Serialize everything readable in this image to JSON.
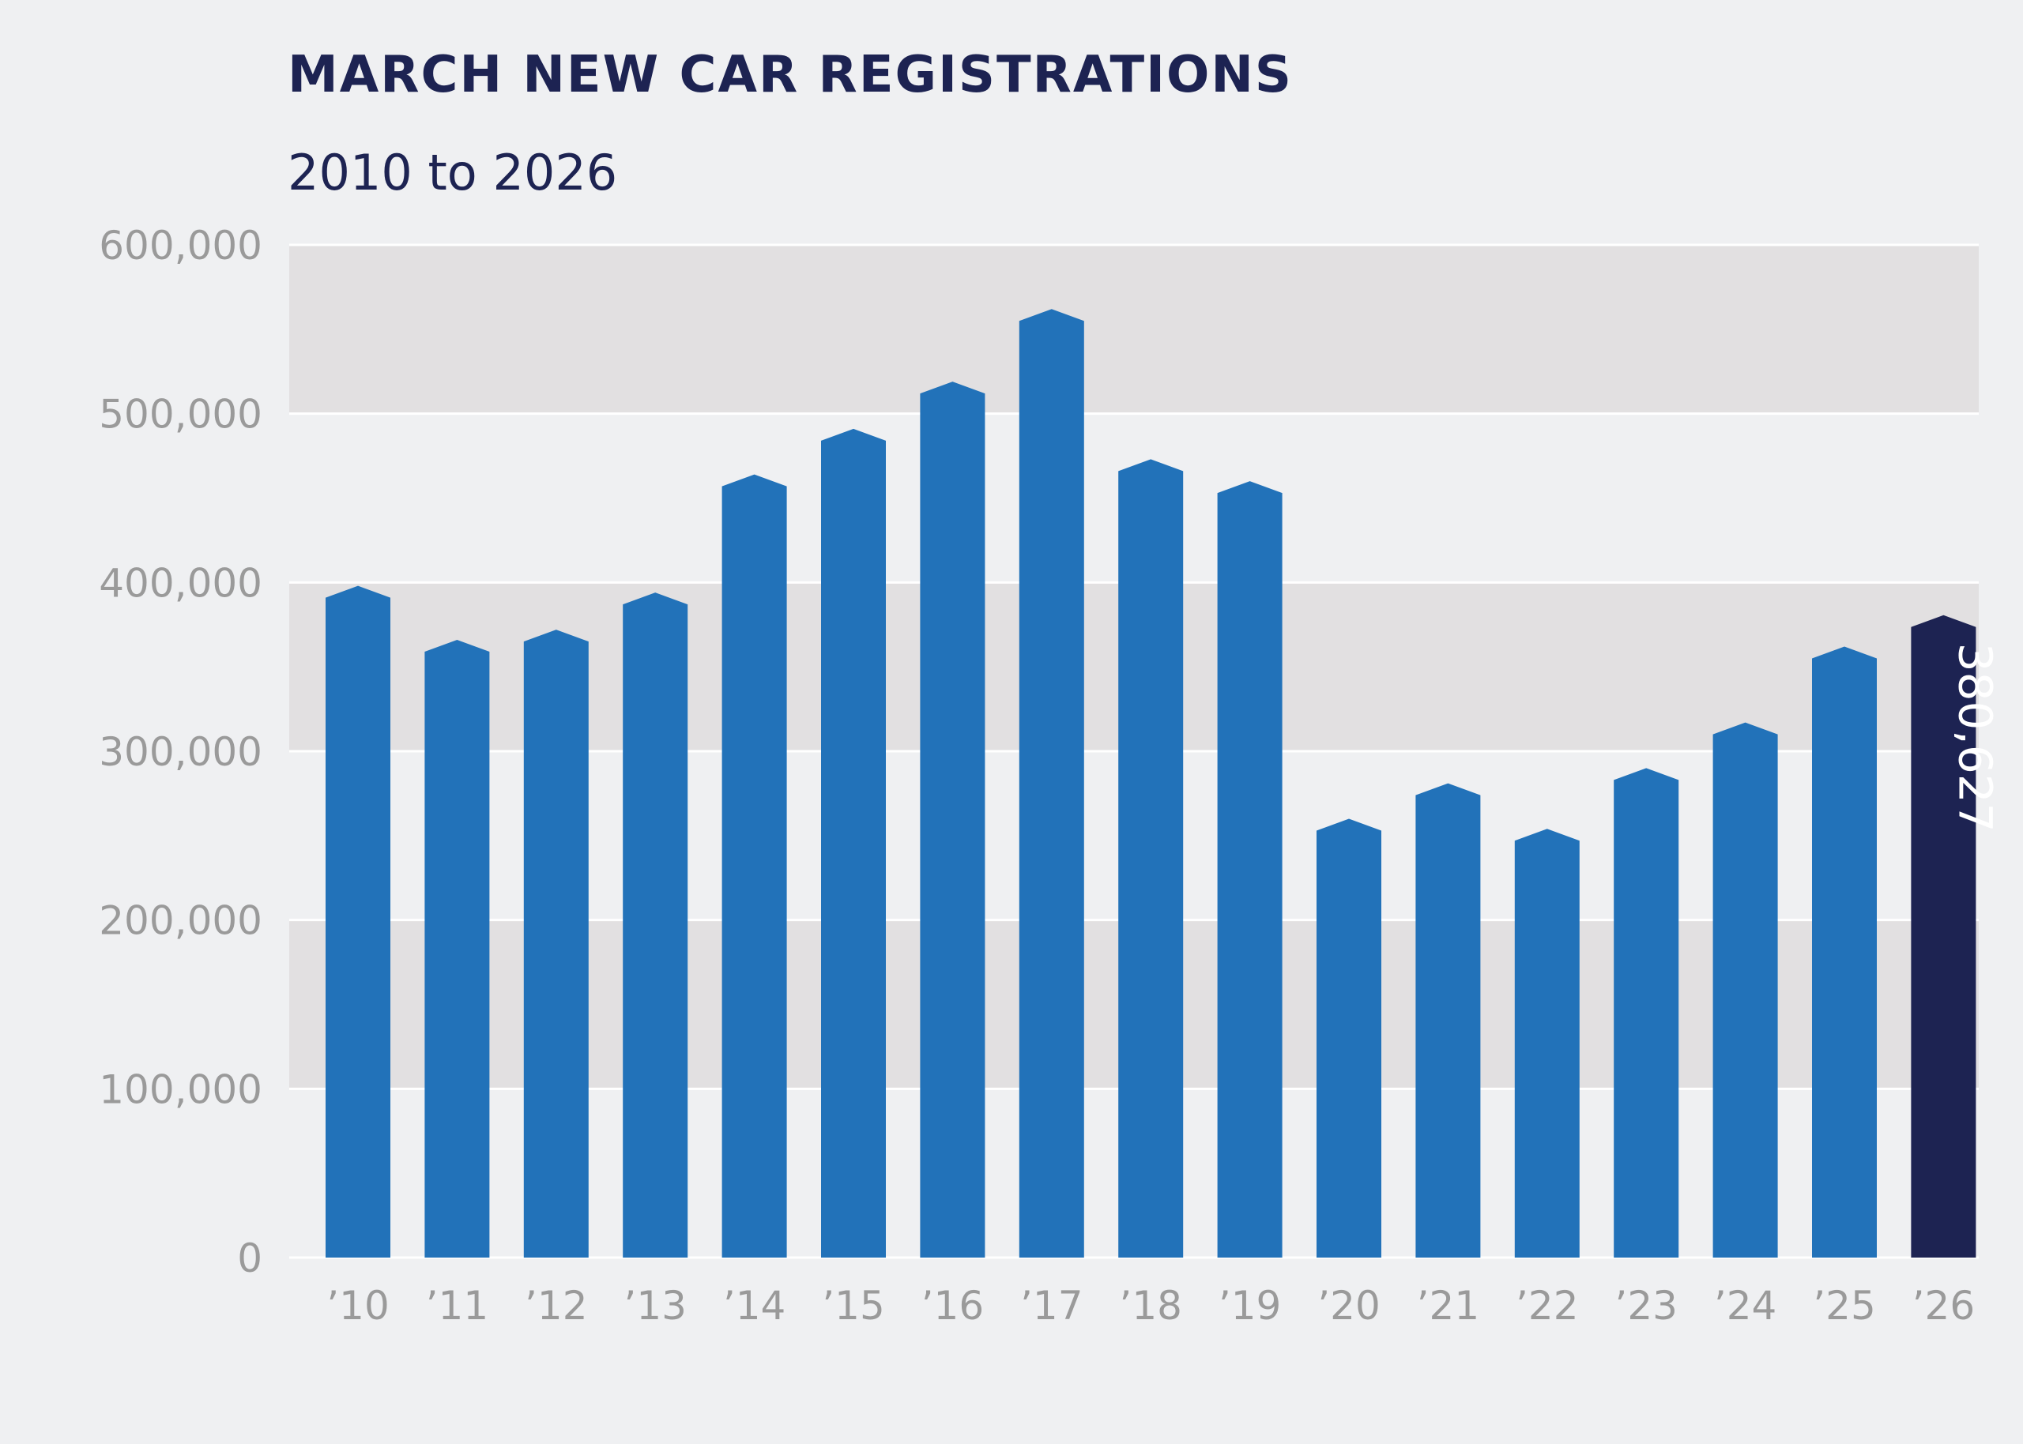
{
  "title": "MARCH NEW CAR REGISTRATIONS",
  "subtitle": "2010 to 2026",
  "chart_data": {
    "type": "bar",
    "title": "MARCH NEW CAR REGISTRATIONS",
    "subtitle": "2010 to 2026",
    "xlabel": "",
    "ylabel": "",
    "categories": [
      "’10",
      "’11",
      "’12",
      "’13",
      "’14",
      "’15",
      "’16",
      "’17",
      "’18",
      "’19",
      "’20",
      "’21",
      "’22",
      "’23",
      "’24",
      "’25",
      "’26"
    ],
    "values": [
      398000,
      366000,
      372000,
      394000,
      464000,
      491000,
      519000,
      562000,
      473000,
      460000,
      260000,
      281000,
      254000,
      290000,
      317000,
      362000,
      380627
    ],
    "ylim": [
      0,
      600000
    ],
    "yticks": [
      0,
      100000,
      200000,
      300000,
      400000,
      500000,
      600000
    ],
    "ytick_labels": [
      "0",
      "100,000",
      "200,000",
      "300,000",
      "400,000",
      "500,000",
      "600,000"
    ],
    "highlight": {
      "category": "’26",
      "label": "380,627"
    },
    "grid": true,
    "legend": "none",
    "colors": {
      "bar": "#2272b9",
      "highlight_bar": "#1d2352",
      "band": "#e2e0e1",
      "background": "#eff0f2",
      "gridline": "#ffffff",
      "tick_text": "#9a9a9a",
      "title_text": "#1d2352"
    }
  }
}
